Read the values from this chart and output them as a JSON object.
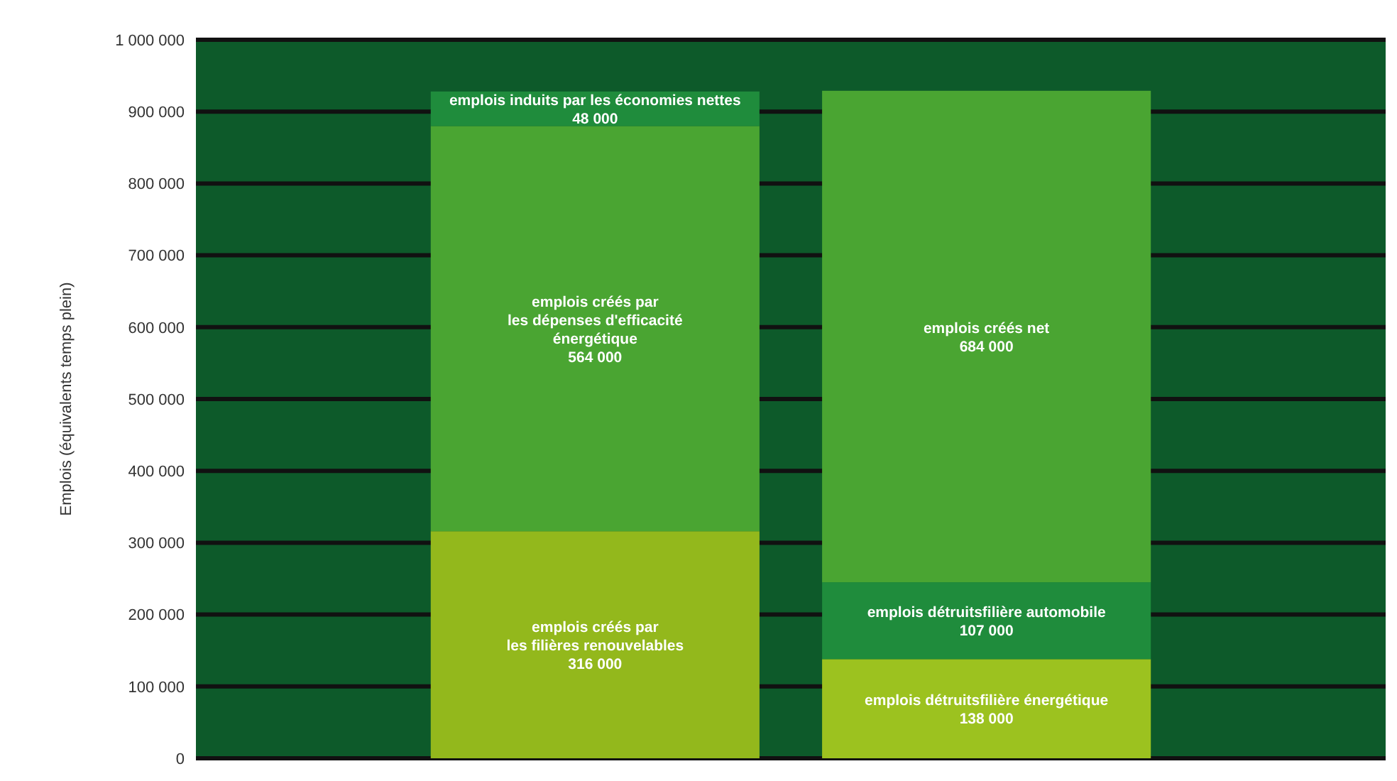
{
  "chart_data": {
    "type": "bar",
    "stacked": true,
    "ylabel": "Emplois (équivalents temps plein)",
    "categories": [
      null,
      null
    ],
    "ylim": [
      0,
      1000000
    ],
    "yticks": [
      {
        "value": 0,
        "label": "0"
      },
      {
        "value": 100000,
        "label": "100 000"
      },
      {
        "value": 200000,
        "label": "200 000"
      },
      {
        "value": 300000,
        "label": "300 000"
      },
      {
        "value": 400000,
        "label": "400 000"
      },
      {
        "value": 500000,
        "label": "500 000"
      },
      {
        "value": 600000,
        "label": "600 000"
      },
      {
        "value": 700000,
        "label": "700 000"
      },
      {
        "value": 800000,
        "label": "800 000"
      },
      {
        "value": 900000,
        "label": "900 000"
      },
      {
        "value": 1000000,
        "label": "1 000 000"
      }
    ],
    "grid": "y",
    "series": [
      {
        "values": [
          316000,
          138000
        ],
        "colors": [
          "#93b81c",
          "#9cc21f"
        ],
        "value_labels": [
          "emplois créés par\nles filières renouvelables\n316 000",
          "emplois détruitsfilière énergétique\n138 000"
        ]
      },
      {
        "values": [
          564000,
          107000
        ],
        "colors": [
          "#4aa532",
          "#1f8c3c"
        ],
        "value_labels": [
          "emplois créés par\nles dépenses d'efficacité\nénergétique\n564 000",
          "emplois détruitsfilière automobile\n107 000"
        ]
      },
      {
        "values": [
          48000,
          684000
        ],
        "colors": [
          "#1f8c3c",
          "#4aa532"
        ],
        "value_labels": [
          "emplois induits par les économies nettes\n48 000",
          "emplois créés net\n684 000"
        ]
      }
    ]
  }
}
